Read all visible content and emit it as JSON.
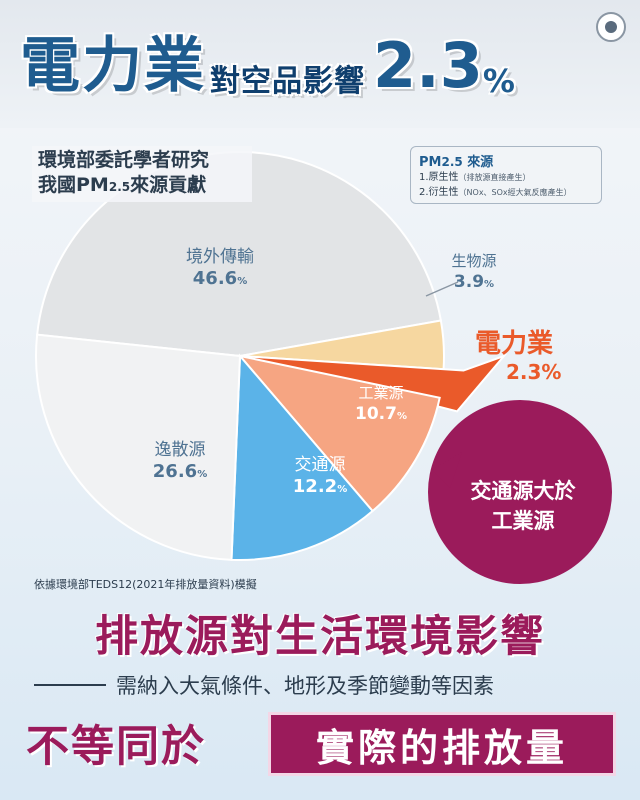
{
  "header": {
    "title_main": "電力業",
    "title_sub": "對空品影響",
    "title_value": "2.3",
    "title_percent": "%"
  },
  "chart_subtitle": {
    "line1": "環境部委託學者研究",
    "line2_prefix": "我國PM",
    "line2_sub": "2.5",
    "line2_suffix": "來源貢獻"
  },
  "source_box": {
    "title_prefix": "PM",
    "title_sub": "2.5",
    "title_suffix": " 來源",
    "item1_label": "1.原生性",
    "item1_note": "（排放源直接產生）",
    "item2_label": "2.衍生性",
    "item2_note": "（NOx、SOx經大氣反應產生）"
  },
  "chart_data": {
    "type": "pie",
    "slices": [
      {
        "label": "境外傳輸",
        "value": 46.6,
        "display": "46.6",
        "color": "#e2e4e6",
        "text_color": "#4f7392"
      },
      {
        "label": "生物源",
        "value": 3.9,
        "display": "3.9",
        "color": "#f6d7a0",
        "text_color": "#4f7392"
      },
      {
        "label": "電力業",
        "value": 2.3,
        "display": "2.3",
        "color": "#ea5a2a",
        "text_color": "#ea5a2a"
      },
      {
        "label": "工業源",
        "value": 10.7,
        "display": "10.7",
        "color": "#f6a582",
        "text_color": "#ffffff"
      },
      {
        "label": "交通源",
        "value": 12.2,
        "display": "12.2",
        "color": "#5bb3e8",
        "text_color": "#ffffff"
      },
      {
        "label": "逸散源",
        "value": 26.6,
        "display": "26.6",
        "color": "#f1f2f3",
        "text_color": "#4f7392"
      }
    ],
    "percent_symbol": "%"
  },
  "callout": {
    "label": "電力業",
    "value": "2.3%"
  },
  "bubble": {
    "line1": "交通源大於",
    "line2": "工業源",
    "color": "#9b1b5b"
  },
  "footnote": "依據環境部TEDS12(2021年排放量資料)模擬",
  "bottom": {
    "headline": "排放源對生活環境影響",
    "subline": "需納入大氣條件、地形及季節變動等因素",
    "left_text": "不等同於",
    "box_text": "實際的排放量"
  }
}
